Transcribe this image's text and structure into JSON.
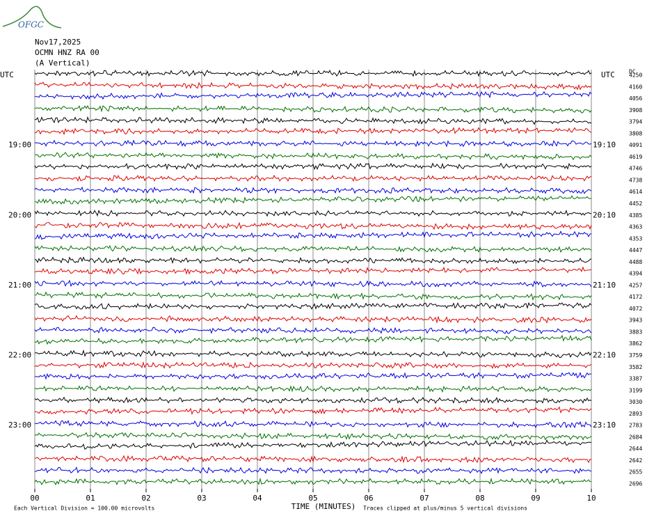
{
  "logo": "OFGC",
  "chart_data": {
    "type": "helicorder",
    "title_lines": [
      "Nov17,2025",
      "OCMN HNZ RA 00",
      "(A Vertical)"
    ],
    "dc_header": "DC",
    "xlabel": "TIME (MINUTES)",
    "scale_note": "Each Vertical Division =  100.00 microvolts",
    "clip_note": "Traces clipped at plus/minus 5 vertical divisions",
    "xlim": [
      0,
      10
    ],
    "xticks": [
      {
        "value": 0,
        "label": "00"
      },
      {
        "value": 1,
        "label": "01"
      },
      {
        "value": 2,
        "label": "02"
      },
      {
        "value": 3,
        "label": "03"
      },
      {
        "value": 4,
        "label": "04"
      },
      {
        "value": 5,
        "label": "05"
      },
      {
        "value": 6,
        "label": "06"
      },
      {
        "value": 7,
        "label": "07"
      },
      {
        "value": 8,
        "label": "08"
      },
      {
        "value": 9,
        "label": "09"
      },
      {
        "value": 10,
        "label": "10"
      }
    ],
    "grid": true,
    "colors": [
      "#000000",
      "#e00000",
      "#0000e0",
      "#007000"
    ],
    "row_labels_left": [
      "UTC",
      null,
      null,
      null,
      null,
      null,
      "19:00",
      null,
      null,
      null,
      null,
      null,
      "20:00",
      null,
      null,
      null,
      null,
      null,
      "21:00",
      null,
      null,
      null,
      null,
      null,
      "22:00",
      null,
      null,
      null,
      null,
      null,
      "23:00",
      null,
      null,
      null,
      null,
      null
    ],
    "row_labels_right": [
      "UTC",
      null,
      null,
      null,
      null,
      null,
      "19:10",
      null,
      null,
      null,
      null,
      null,
      "20:10",
      null,
      null,
      null,
      null,
      null,
      "21:10",
      null,
      null,
      null,
      null,
      null,
      "22:10",
      null,
      null,
      null,
      null,
      null,
      "23:10",
      null,
      null,
      null,
      null,
      null
    ],
    "dc_values": [
      4250,
      4160,
      4056,
      3908,
      3794,
      3808,
      4091,
      4619,
      4746,
      4738,
      4614,
      4452,
      4385,
      4363,
      4353,
      4447,
      4488,
      4394,
      4257,
      4172,
      4072,
      3943,
      3883,
      3862,
      3759,
      3582,
      3387,
      3199,
      3030,
      2893,
      2783,
      2684,
      2644,
      2642,
      2655,
      2696
    ]
  }
}
